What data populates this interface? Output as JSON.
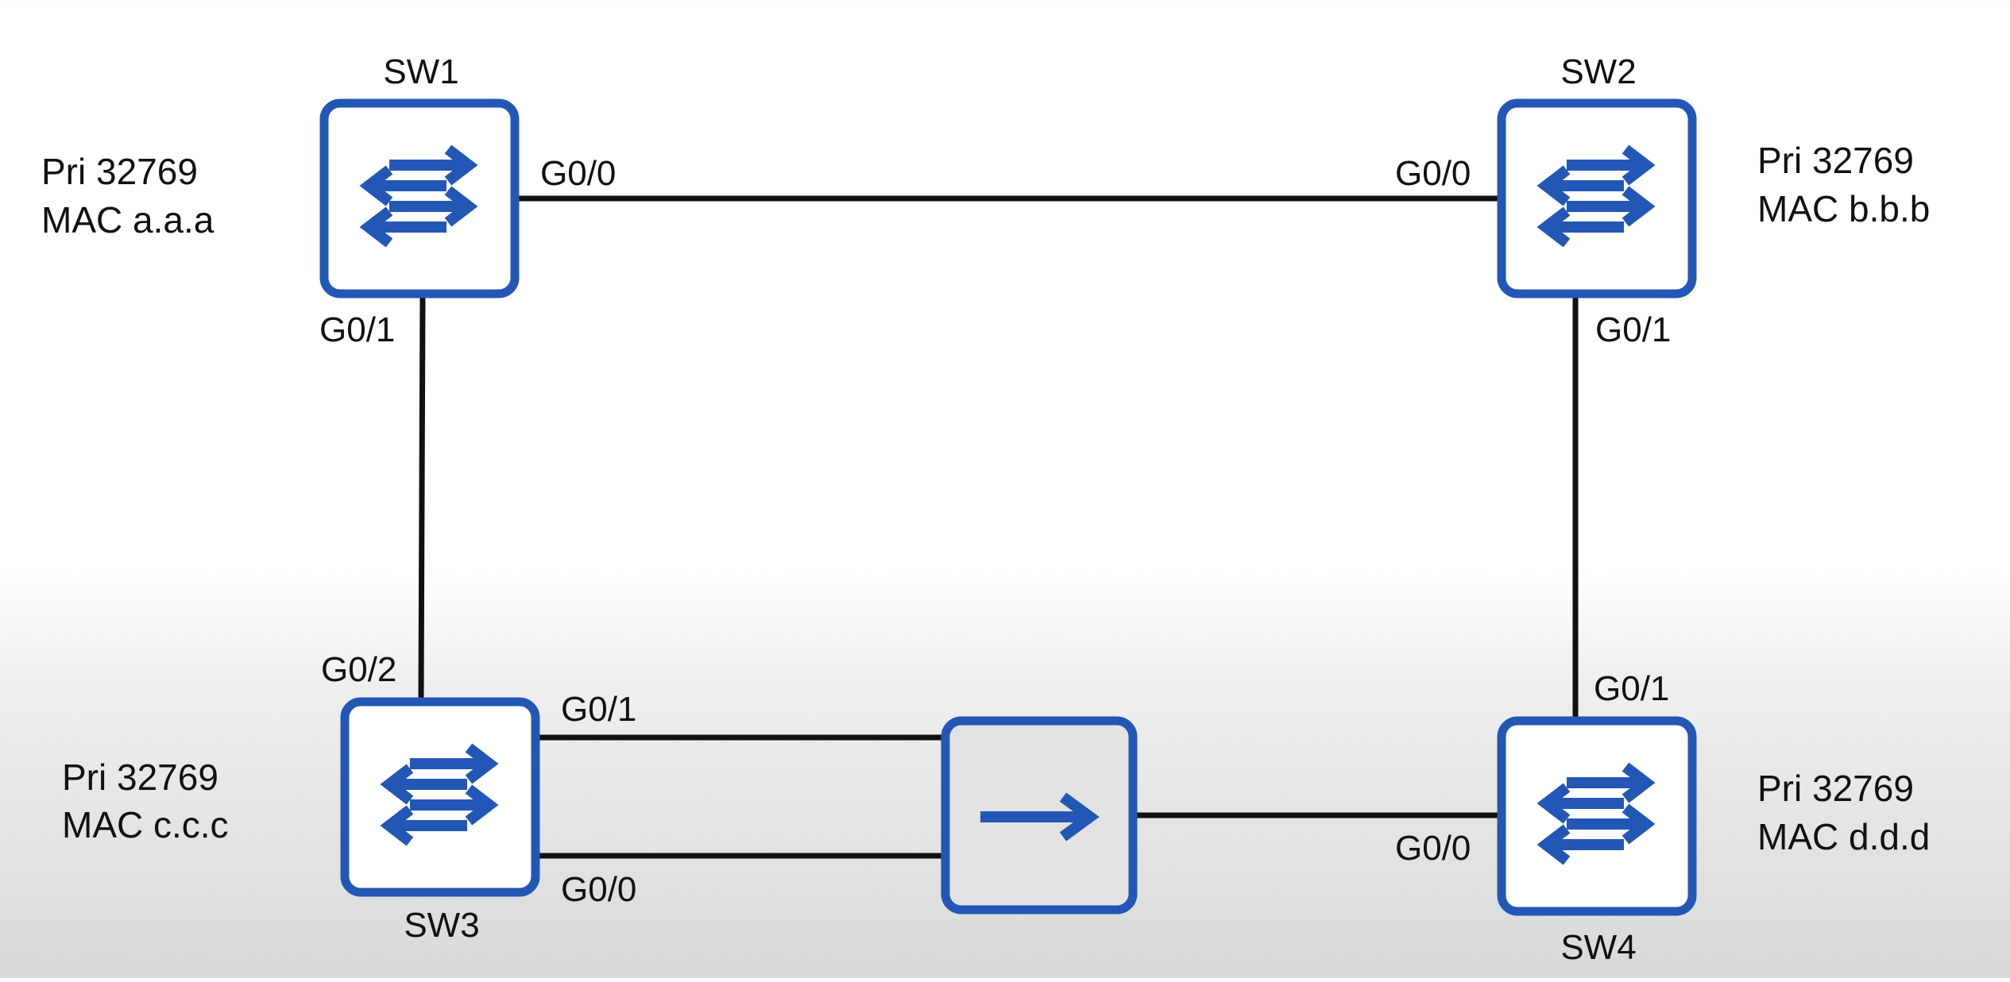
{
  "colors": {
    "device_border": "#2357b5",
    "icon": "#2357b5",
    "device_fill": "#ffffff",
    "hub_fill": "#e3e3e3",
    "link": "#111111"
  },
  "devices": {
    "sw1": {
      "name": "SW1",
      "priority": "Pri 32769",
      "mac": "MAC a.a.a",
      "icon": "switch-arrows-icon"
    },
    "sw2": {
      "name": "SW2",
      "priority": "Pri 32769",
      "mac": "MAC b.b.b",
      "icon": "switch-arrows-icon"
    },
    "sw3": {
      "name": "SW3",
      "priority": "Pri 32769",
      "mac": "MAC c.c.c",
      "icon": "switch-arrows-icon"
    },
    "sw4": {
      "name": "SW4",
      "priority": "Pri 32769",
      "mac": "MAC d.d.d",
      "icon": "switch-arrows-icon"
    },
    "hub": {
      "icon": "right-arrow-icon"
    }
  },
  "ports": {
    "sw1_g00": "G0/0",
    "sw1_g01": "G0/1",
    "sw2_g00": "G0/0",
    "sw2_g01": "G0/1",
    "sw3_g02": "G0/2",
    "sw3_g01": "G0/1",
    "sw3_g00": "G0/0",
    "sw4_g01": "G0/1",
    "sw4_g00": "G0/0"
  }
}
